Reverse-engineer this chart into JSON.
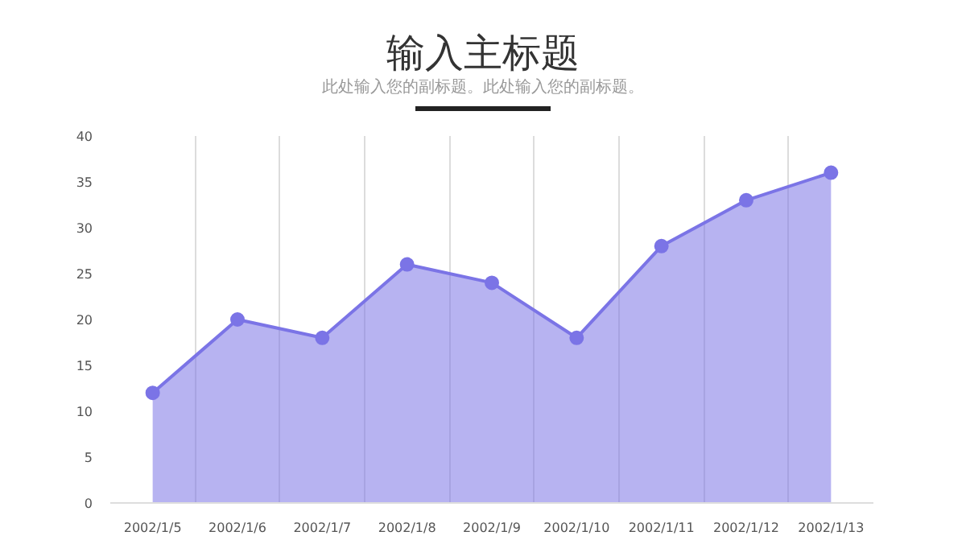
{
  "chart_data": {
    "type": "area",
    "title": "输入主标题",
    "subtitle": "此处输入您的副标题。此处输入您的副标题。",
    "categories": [
      "2002/1/5",
      "2002/1/6",
      "2002/1/7",
      "2002/1/8",
      "2002/1/9",
      "2002/1/10",
      "2002/1/11",
      "2002/1/12",
      "2002/1/13"
    ],
    "series": [
      {
        "color": "#7b74e6",
        "values": [
          12,
          20,
          18,
          26,
          24,
          18,
          28,
          33,
          36
        ]
      }
    ],
    "ylim": [
      0,
      40
    ],
    "yticks": [
      0,
      5,
      10,
      15,
      20,
      25,
      30,
      35,
      40
    ],
    "grid": "x",
    "marker": "circle"
  }
}
